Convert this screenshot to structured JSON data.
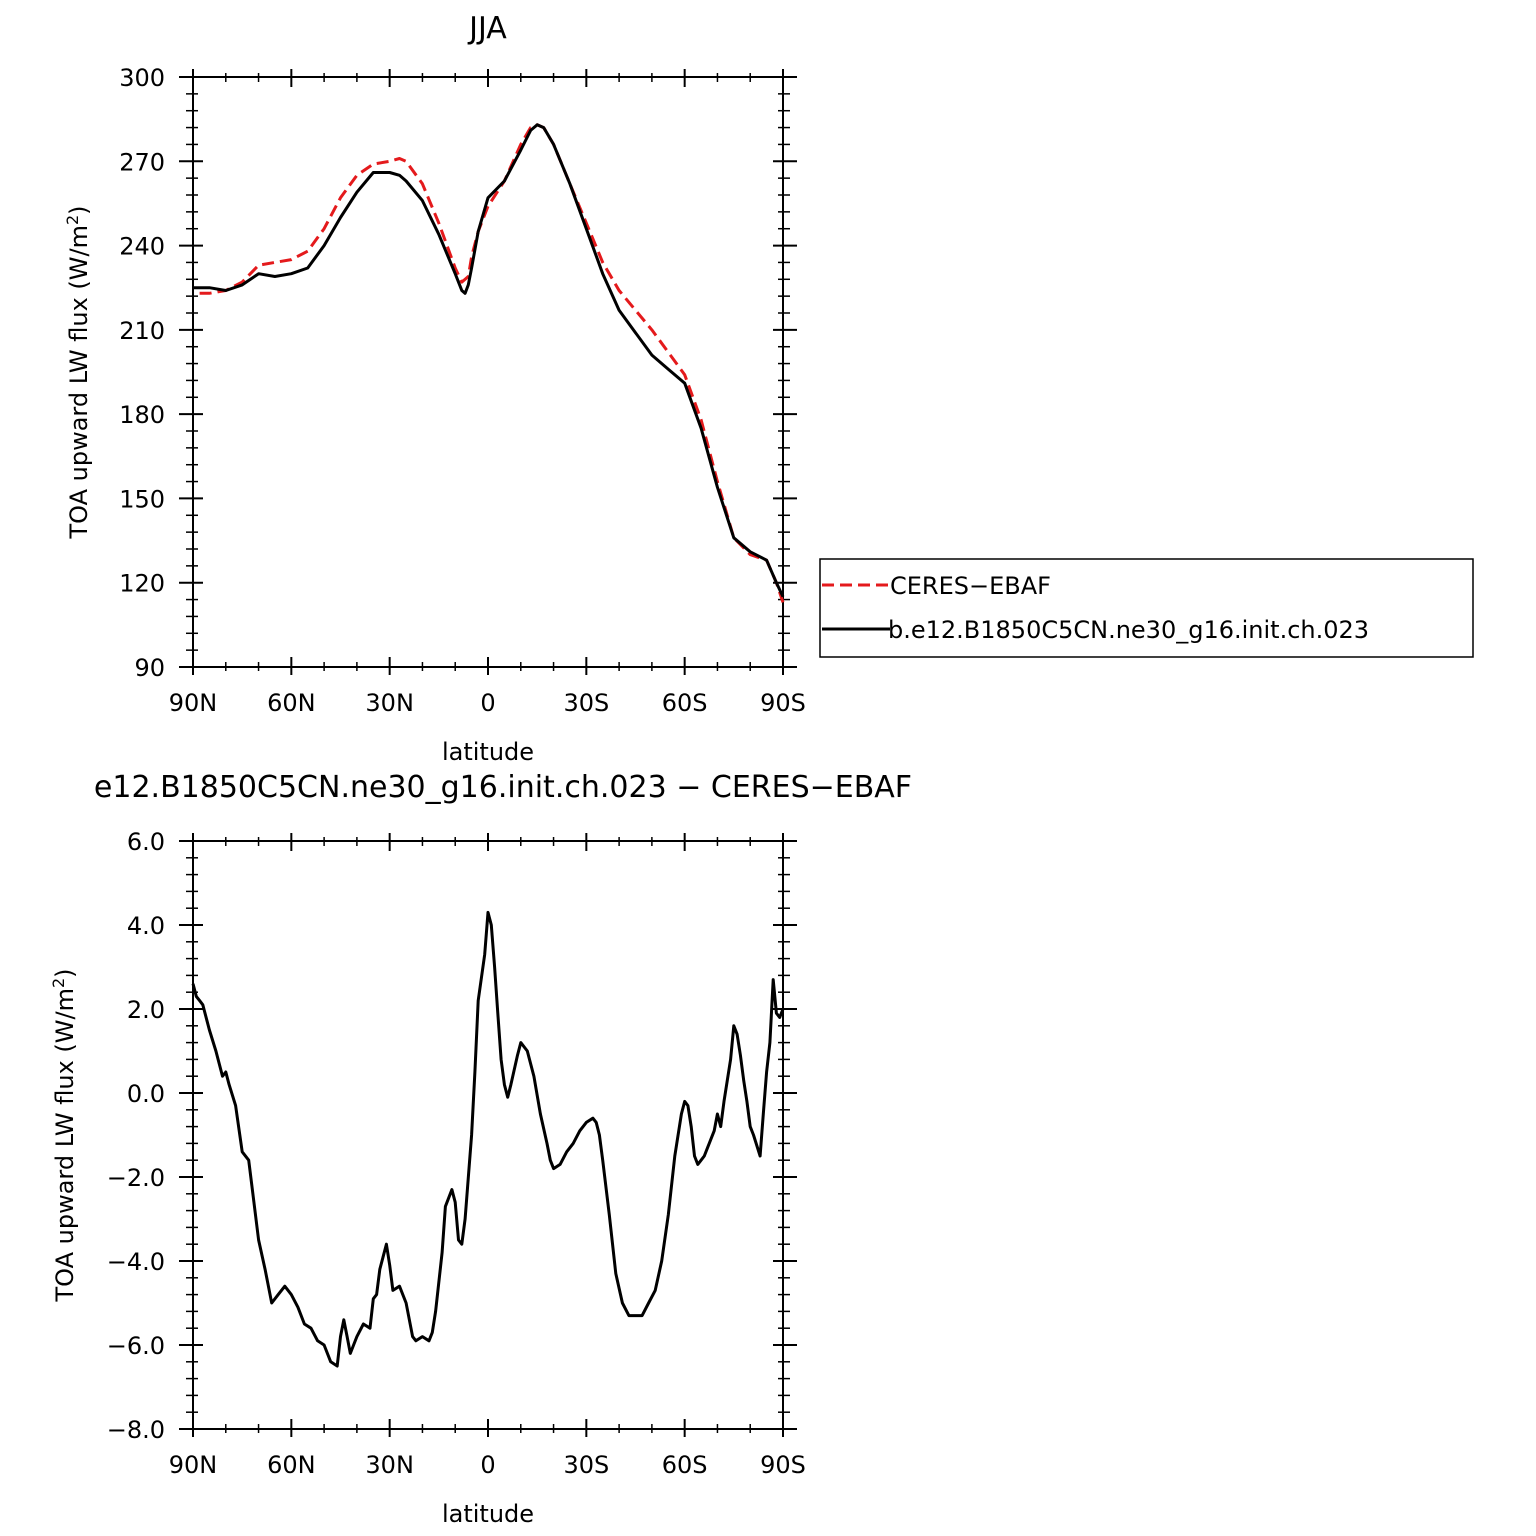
{
  "colors": {
    "model": "#000000",
    "obs": "#e41a1c",
    "axis": "#000000",
    "background": "#ffffff"
  },
  "chart_data": [
    {
      "type": "line",
      "title": "JJA",
      "xlabel": "latitude",
      "ylabel": "TOA upward LW flux (W/m²)",
      "ylabel_main": "TOA upward LW flux (W/m",
      "ylabel_sup": "2",
      "ylabel_end": ")",
      "xlim": [
        90,
        -90
      ],
      "ylim": [
        90,
        300
      ],
      "x_ticks": [
        90,
        60,
        30,
        0,
        -30,
        -60,
        -90
      ],
      "x_tick_labels": [
        "90N",
        "60N",
        "30N",
        "0",
        "30S",
        "60S",
        "90S"
      ],
      "y_ticks": [
        90,
        120,
        150,
        180,
        210,
        240,
        270,
        300
      ],
      "y_tick_labels": [
        "90",
        "120",
        "150",
        "180",
        "210",
        "240",
        "270",
        "300"
      ],
      "legend": {
        "placement": "right",
        "entries": [
          {
            "label": "CERES−EBAF",
            "style": "dashed",
            "color": "#e41a1c"
          },
          {
            "label": "b.e12.B1850C5CN.ne30_g16.init.ch.023",
            "style": "solid",
            "color": "#000000"
          }
        ]
      },
      "series": [
        {
          "name": "CERES−EBAF",
          "style": "dashed",
          "color": "#e41a1c",
          "x": [
            88,
            85,
            80,
            75,
            70,
            65,
            60,
            55,
            50,
            45,
            40,
            35,
            30,
            27,
            25,
            20,
            15,
            10,
            8,
            6,
            5,
            3,
            0,
            -5,
            -10,
            -13,
            -15,
            -17,
            -20,
            -25,
            -30,
            -35,
            -40,
            -45,
            -50,
            -55,
            -60,
            -65,
            -70,
            -75,
            -80,
            -85,
            -88,
            -90
          ],
          "y": [
            223,
            223,
            224,
            227,
            233,
            234,
            235,
            238,
            246,
            257,
            265,
            269,
            270,
            271,
            270,
            262,
            248,
            232,
            227,
            229,
            236,
            245,
            254,
            263,
            276,
            282,
            283,
            282,
            276,
            262,
            248,
            234,
            224,
            217,
            210,
            202,
            194,
            178,
            156,
            136,
            130,
            128,
            120,
            113
          ]
        },
        {
          "name": "b.e12.B1850C5CN.ne30_g16.init.ch.023",
          "style": "solid",
          "color": "#000000",
          "x": [
            90,
            85,
            80,
            75,
            70,
            65,
            60,
            55,
            50,
            45,
            40,
            35,
            30,
            27,
            25,
            20,
            15,
            10,
            8,
            7,
            6,
            5,
            3,
            0,
            -5,
            -10,
            -13,
            -15,
            -17,
            -20,
            -25,
            -30,
            -35,
            -40,
            -45,
            -50,
            -55,
            -60,
            -65,
            -70,
            -75,
            -80,
            -85,
            -88,
            -90
          ],
          "y": [
            225,
            225,
            224,
            226,
            230,
            229,
            230,
            232,
            240,
            250,
            259,
            266,
            266,
            265,
            263,
            256,
            244,
            230,
            224,
            223,
            226,
            232,
            245,
            257,
            263,
            274,
            281,
            283,
            282,
            276,
            262,
            246,
            230,
            217,
            209,
            201,
            196,
            191,
            175,
            154,
            136,
            131,
            128,
            120,
            115
          ]
        }
      ]
    },
    {
      "type": "line",
      "title": "e12.B1850C5CN.ne30_g16.init.ch.023 − CERES−EBAF",
      "xlabel": "latitude",
      "ylabel": "TOA upward LW flux (W/m²)",
      "ylabel_main": "TOA upward LW flux (W/m",
      "ylabel_sup": "2",
      "ylabel_end": ")",
      "xlim": [
        90,
        -90
      ],
      "ylim": [
        -8,
        6
      ],
      "x_ticks": [
        90,
        60,
        30,
        0,
        -30,
        -60,
        -90
      ],
      "x_tick_labels": [
        "90N",
        "60N",
        "30N",
        "0",
        "30S",
        "60S",
        "90S"
      ],
      "y_ticks": [
        -8,
        -6,
        -4,
        -2,
        0,
        2,
        4,
        6
      ],
      "y_tick_labels": [
        "−8.0",
        "−6.0",
        "−4.0",
        "−2.0",
        "0.0",
        "2.0",
        "4.0",
        "6.0"
      ],
      "series": [
        {
          "style": "solid",
          "color": "#000000",
          "x": [
            90,
            89,
            88,
            87,
            85,
            83,
            81,
            80,
            79,
            77,
            75,
            73,
            70,
            68,
            66,
            64,
            62,
            60,
            58,
            56,
            54,
            52,
            50,
            48,
            46,
            45,
            44,
            43,
            42,
            41,
            40,
            38,
            36,
            35,
            34,
            33,
            31,
            30,
            29,
            27,
            25,
            23,
            22,
            20,
            18,
            17,
            16,
            14,
            13,
            11,
            10,
            9,
            8,
            7,
            5,
            4,
            3,
            1,
            0,
            -1,
            -2,
            -3,
            -4,
            -5,
            -6,
            -7,
            -9,
            -10,
            -12,
            -14,
            -16,
            -18,
            -19,
            -20,
            -22,
            -24,
            -26,
            -28,
            -30,
            -32,
            -33,
            -34,
            -35,
            -37,
            -39,
            -41,
            -43,
            -45,
            -47,
            -49,
            -51,
            -53,
            -55,
            -57,
            -59,
            -60,
            -61,
            -62,
            -63,
            -64,
            -65,
            -66,
            -67,
            -68,
            -69,
            -70,
            -71,
            -72,
            -73,
            -74,
            -75,
            -76,
            -77,
            -78,
            -79,
            -80,
            -81,
            -83,
            -84,
            -85,
            -86,
            -87,
            -88,
            -89,
            -90
          ],
          "y": [
            2.6,
            2.3,
            2.2,
            2.1,
            1.5,
            1.0,
            0.4,
            0.5,
            0.2,
            -0.3,
            -1.4,
            -1.6,
            -3.5,
            -4.2,
            -5.0,
            -4.8,
            -4.6,
            -4.8,
            -5.1,
            -5.5,
            -5.6,
            -5.9,
            -6.0,
            -6.4,
            -6.5,
            -5.8,
            -5.4,
            -5.8,
            -6.2,
            -6.0,
            -5.8,
            -5.5,
            -5.6,
            -4.9,
            -4.8,
            -4.2,
            -3.6,
            -4.1,
            -4.7,
            -4.6,
            -5.0,
            -5.8,
            -5.9,
            -5.8,
            -5.9,
            -5.7,
            -5.2,
            -3.8,
            -2.7,
            -2.3,
            -2.6,
            -3.5,
            -3.6,
            -3.0,
            -1.0,
            0.5,
            2.2,
            3.3,
            4.3,
            4.0,
            3.0,
            1.9,
            0.8,
            0.2,
            -0.1,
            0.2,
            0.9,
            1.2,
            1.0,
            0.4,
            -0.5,
            -1.2,
            -1.6,
            -1.8,
            -1.7,
            -1.4,
            -1.2,
            -0.9,
            -0.7,
            -0.6,
            -0.7,
            -1.0,
            -1.6,
            -2.9,
            -4.3,
            -5.0,
            -5.3,
            -5.3,
            -5.3,
            -5.0,
            -4.7,
            -4.0,
            -2.9,
            -1.5,
            -0.5,
            -0.2,
            -0.3,
            -0.8,
            -1.5,
            -1.7,
            -1.6,
            -1.5,
            -1.3,
            -1.1,
            -0.9,
            -0.5,
            -0.8,
            -0.2,
            0.3,
            0.8,
            1.6,
            1.4,
            0.9,
            0.3,
            -0.2,
            -0.8,
            -1.0,
            -1.5,
            -0.5,
            0.5,
            1.2,
            2.7,
            1.9,
            1.8,
            2.0
          ]
        }
      ]
    }
  ]
}
